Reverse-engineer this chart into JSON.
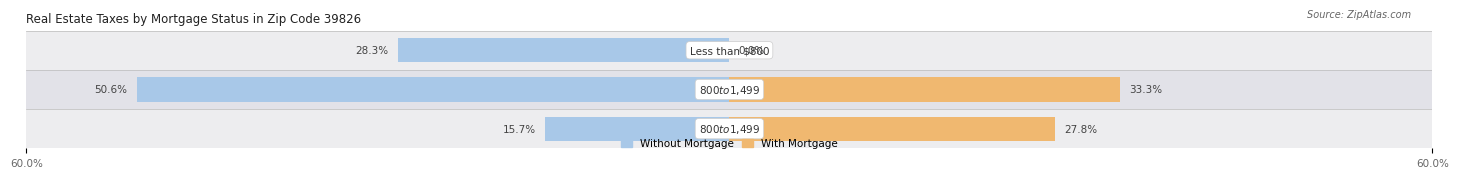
{
  "title": "Real Estate Taxes by Mortgage Status in Zip Code 39826",
  "source": "Source: ZipAtlas.com",
  "rows": [
    {
      "without_pct": 28.3,
      "with_pct": 0.0,
      "label": "Less than $800"
    },
    {
      "without_pct": 50.6,
      "with_pct": 33.3,
      "label": "$800 to $1,499"
    },
    {
      "without_pct": 15.7,
      "with_pct": 27.8,
      "label": "$800 to $1,499"
    }
  ],
  "x_max": 60.0,
  "x_min": -60.0,
  "color_without": "#a8c8e8",
  "color_with": "#f0b870",
  "row_colors": [
    "#ededef",
    "#e2e2e8",
    "#ededef"
  ],
  "title_fontsize": 8.5,
  "source_fontsize": 7,
  "label_fontsize": 7.5,
  "tick_fontsize": 7.5,
  "legend_fontsize": 7.5,
  "axis_label_left": "60.0%",
  "axis_label_right": "60.0%"
}
